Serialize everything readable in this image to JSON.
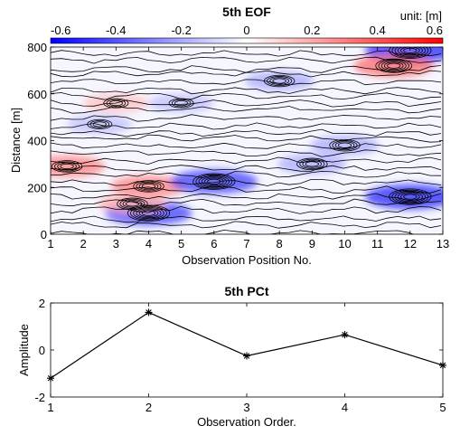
{
  "chart_data": [
    {
      "type": "heatmap",
      "title": "5th EOF",
      "xlabel": "Observation Position No.",
      "ylabel": "Distance [m]",
      "colorbar_label": "unit: [m]",
      "xlim": [
        1,
        13
      ],
      "ylim": [
        0,
        800
      ],
      "x_ticks": [
        1,
        2,
        3,
        4,
        5,
        6,
        7,
        8,
        9,
        10,
        11,
        12,
        13
      ],
      "y_ticks": [
        0,
        200,
        400,
        600,
        800
      ],
      "clim": [
        -0.6,
        0.6
      ],
      "colorbar_ticks": [
        -0.6,
        -0.4,
        -0.2,
        0,
        0.2,
        0.4,
        0.6
      ],
      "colormap": {
        "negative": "#0000ff",
        "zero": "#ffffff",
        "positive": "#ff0000"
      },
      "contours": true,
      "features": [
        {
          "x": 4,
          "y": 205,
          "value": 0.3
        },
        {
          "x": 6,
          "y": 225,
          "value": -0.45
        },
        {
          "x": 12,
          "y": 160,
          "value": -0.5
        },
        {
          "x": 4,
          "y": 90,
          "value": -0.45
        },
        {
          "x": 12,
          "y": 785,
          "value": -0.5
        },
        {
          "x": 11.5,
          "y": 720,
          "value": 0.35
        },
        {
          "x": 1.5,
          "y": 290,
          "value": 0.3
        },
        {
          "x": 8,
          "y": 655,
          "value": -0.2
        },
        {
          "x": 5,
          "y": 560,
          "value": -0.15
        },
        {
          "x": 10,
          "y": 380,
          "value": -0.2
        },
        {
          "x": 2.5,
          "y": 470,
          "value": -0.15
        },
        {
          "x": 3,
          "y": 560,
          "value": 0.15
        },
        {
          "x": 9,
          "y": 300,
          "value": -0.2
        },
        {
          "x": 3.5,
          "y": 130,
          "value": 0.2
        }
      ]
    },
    {
      "type": "line",
      "title": "5th PCt",
      "xlabel": "Observation Order.",
      "ylabel": "Amplitude",
      "x": [
        1,
        2,
        3,
        4,
        5
      ],
      "y": [
        -1.2,
        1.6,
        -0.25,
        0.65,
        -0.65
      ],
      "xlim": [
        1,
        5
      ],
      "ylim": [
        -2,
        2
      ],
      "x_ticks": [
        1,
        2,
        3,
        4,
        5
      ],
      "y_ticks": [
        -2,
        0,
        2
      ],
      "marker": "*",
      "color": "#000000"
    }
  ]
}
